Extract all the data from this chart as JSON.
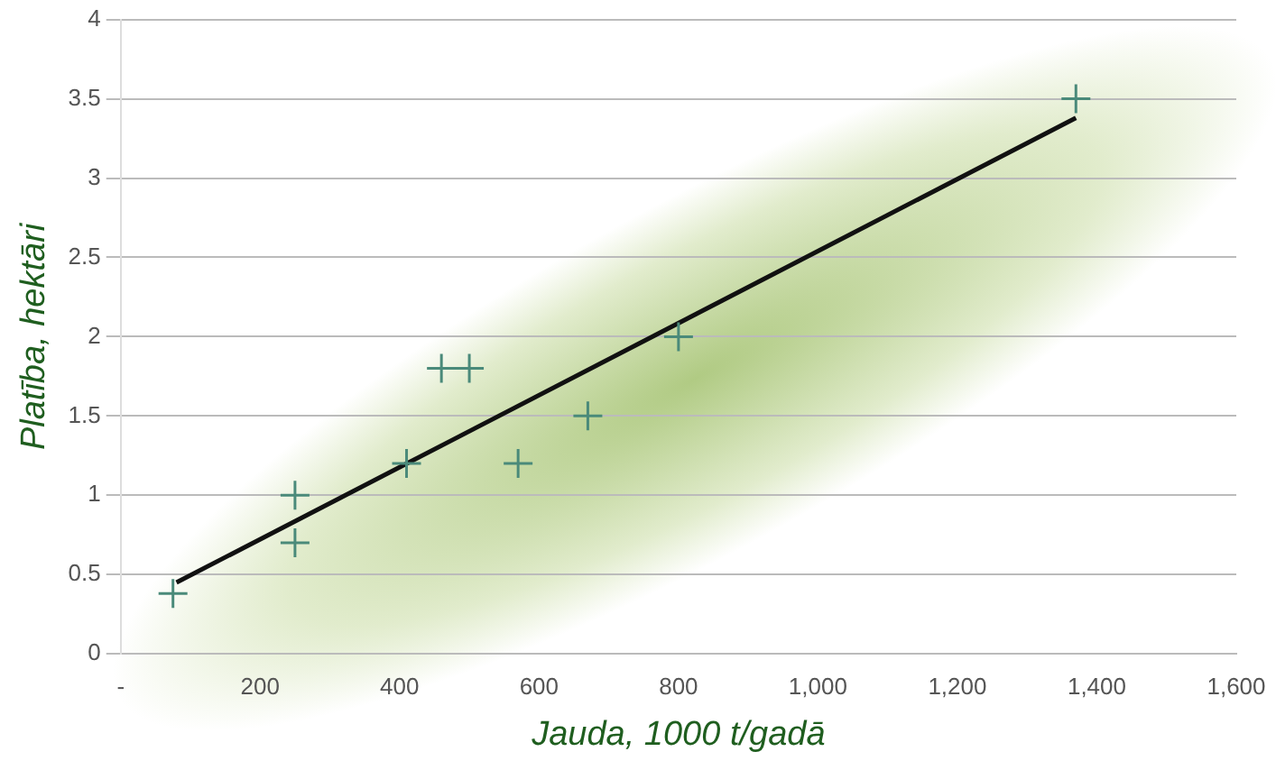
{
  "chart_data": {
    "type": "scatter",
    "xlabel": "Jauda, 1000 t/gadā",
    "ylabel": "Platība, hektāri",
    "xlim": [
      0,
      1600
    ],
    "xticks": [
      {
        "value": 0,
        "label": "-"
      },
      200,
      400,
      600,
      800,
      {
        "value": 1000,
        "label": "1,000"
      },
      {
        "value": 1200,
        "label": "1,200"
      },
      {
        "value": 1400,
        "label": "1,400"
      },
      {
        "value": 1600,
        "label": "1,600"
      }
    ],
    "ylim": [
      0,
      4
    ],
    "yticks": [
      0,
      0.5,
      1,
      1.5,
      2,
      2.5,
      3,
      3.5,
      4
    ],
    "grid": "y",
    "legend": false,
    "marker": "cross",
    "series": [
      {
        "type": "scatter",
        "color": "#4a8a7a",
        "x": [
          75,
          250,
          250,
          410,
          460,
          500,
          570,
          670,
          800,
          1370
        ],
        "values": [
          0.38,
          1.0,
          0.7,
          1.2,
          1.8,
          1.8,
          1.2,
          1.5,
          2.0,
          3.5
        ]
      },
      {
        "type": "line",
        "color": "#111111",
        "x": [
          80,
          1370
        ],
        "values": [
          0.45,
          3.38
        ],
        "marker": "none",
        "line_style": "solid"
      }
    ]
  }
}
